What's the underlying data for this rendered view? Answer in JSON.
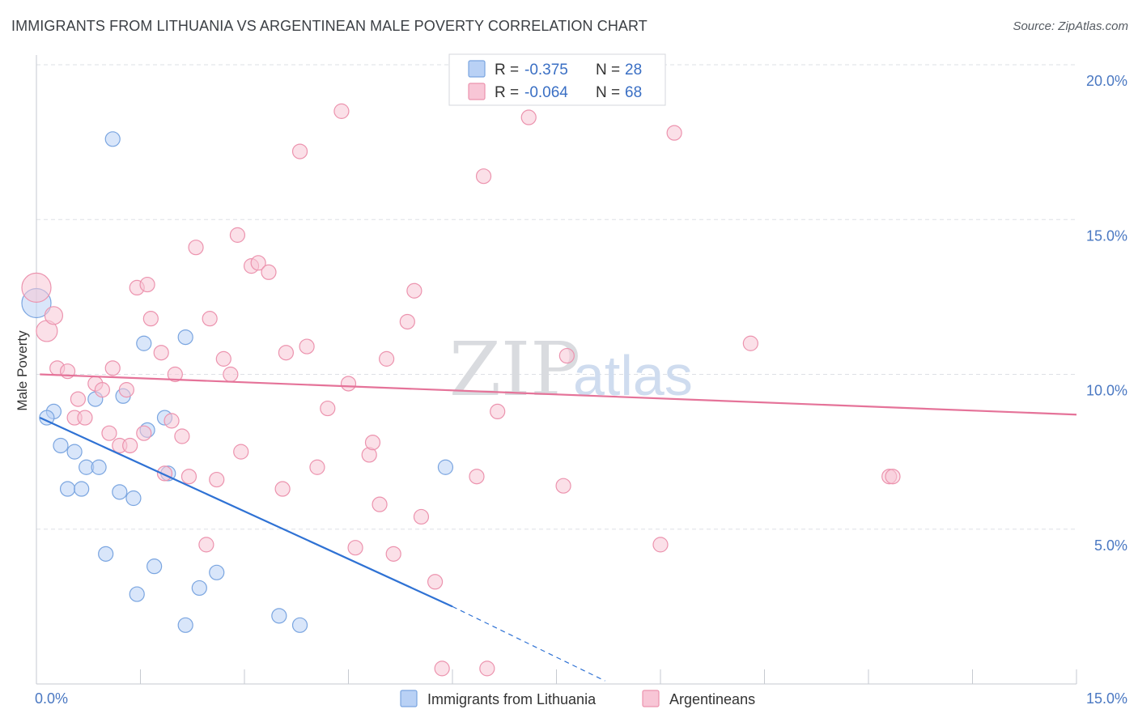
{
  "title": "IMMIGRANTS FROM LITHUANIA VS ARGENTINEAN MALE POVERTY CORRELATION CHART",
  "source": "Source: ZipAtlas.com",
  "watermark": {
    "zip": "ZIP",
    "atlas": "atlas"
  },
  "colors": {
    "blue_fill": "#b9d1f5",
    "blue_stroke": "#7aa5e0",
    "blue_line": "#2f72d4",
    "pink_fill": "#f8c6d6",
    "pink_stroke": "#ec93ae",
    "pink_line": "#e57399",
    "grid": "#dde0e5",
    "tick_label": "#4a78c2"
  },
  "legend": [
    {
      "r_label": "R =",
      "r_value": "-0.375",
      "n_label": "N =",
      "n_value": "28",
      "color": "blue"
    },
    {
      "r_label": "R =",
      "r_value": "-0.064",
      "n_label": "N =",
      "n_value": "68",
      "color": "pink"
    }
  ],
  "chart_data": {
    "type": "scatter",
    "ylabel": "Male Poverty",
    "xlim": [
      0,
      15
    ],
    "ylim": [
      0,
      20
    ],
    "x_ticks": [
      "0.0%",
      "15.0%"
    ],
    "y_ticks": [
      {
        "value": 5,
        "label": "5.0%"
      },
      {
        "value": 10,
        "label": "10.0%"
      },
      {
        "value": 15,
        "label": "15.0%"
      },
      {
        "value": 20,
        "label": "20.0%"
      }
    ],
    "grid": true,
    "legend_position": "top-center",
    "series": [
      {
        "name": "Immigrants from Lithuania",
        "color": "blue",
        "trend": {
          "x0": 0.05,
          "y0": 8.6,
          "x1": 6.0,
          "y1": 2.5,
          "dash_to_x": 8.2,
          "dash_to_y": 0.1
        },
        "points": [
          [
            0.0,
            12.3,
            18
          ],
          [
            1.1,
            17.6,
            9
          ],
          [
            0.25,
            8.8,
            9
          ],
          [
            0.15,
            8.6,
            9
          ],
          [
            1.55,
            11.0,
            9
          ],
          [
            2.15,
            11.2,
            9
          ],
          [
            0.85,
            9.2,
            9
          ],
          [
            1.25,
            9.3,
            9
          ],
          [
            1.6,
            8.2,
            9
          ],
          [
            1.85,
            8.6,
            9
          ],
          [
            0.35,
            7.7,
            9
          ],
          [
            0.55,
            7.5,
            9
          ],
          [
            0.72,
            7.0,
            9
          ],
          [
            0.9,
            7.0,
            9
          ],
          [
            1.9,
            6.8,
            9
          ],
          [
            0.45,
            6.3,
            9
          ],
          [
            0.65,
            6.3,
            9
          ],
          [
            1.2,
            6.2,
            9
          ],
          [
            1.4,
            6.0,
            9
          ],
          [
            5.9,
            7.0,
            9
          ],
          [
            1.0,
            4.2,
            9
          ],
          [
            1.7,
            3.8,
            9
          ],
          [
            2.6,
            3.6,
            9
          ],
          [
            2.35,
            3.1,
            9
          ],
          [
            1.45,
            2.9,
            9
          ],
          [
            2.15,
            1.9,
            9
          ],
          [
            3.5,
            2.2,
            9
          ],
          [
            3.8,
            1.9,
            9
          ]
        ]
      },
      {
        "name": "Argentineans",
        "color": "pink",
        "trend": {
          "x0": 0.05,
          "y0": 10.0,
          "x1": 15.0,
          "y1": 8.7
        },
        "points": [
          [
            0.0,
            12.8,
            18
          ],
          [
            0.15,
            11.4,
            13
          ],
          [
            0.25,
            11.9,
            11
          ],
          [
            0.3,
            10.2,
            9
          ],
          [
            0.45,
            10.1,
            9
          ],
          [
            0.6,
            9.2,
            9
          ],
          [
            0.55,
            8.6,
            9
          ],
          [
            0.7,
            8.6,
            9
          ],
          [
            0.85,
            9.7,
            9
          ],
          [
            0.95,
            9.5,
            9
          ],
          [
            1.05,
            8.1,
            9
          ],
          [
            1.1,
            10.2,
            9
          ],
          [
            1.2,
            7.7,
            9
          ],
          [
            1.3,
            9.5,
            9
          ],
          [
            1.35,
            7.7,
            9
          ],
          [
            1.45,
            12.8,
            9
          ],
          [
            1.55,
            8.1,
            9
          ],
          [
            1.6,
            12.9,
            9
          ],
          [
            1.65,
            11.8,
            9
          ],
          [
            1.8,
            10.7,
            9
          ],
          [
            1.85,
            6.8,
            9
          ],
          [
            1.95,
            8.5,
            9
          ],
          [
            2.0,
            10.0,
            9
          ],
          [
            2.1,
            8.0,
            9
          ],
          [
            2.2,
            6.7,
            9
          ],
          [
            2.3,
            14.1,
            9
          ],
          [
            2.45,
            4.5,
            9
          ],
          [
            2.5,
            11.8,
            9
          ],
          [
            2.6,
            6.6,
            9
          ],
          [
            2.7,
            10.5,
            9
          ],
          [
            2.8,
            10.0,
            9
          ],
          [
            2.9,
            14.5,
            9
          ],
          [
            2.95,
            7.5,
            9
          ],
          [
            3.1,
            13.5,
            9
          ],
          [
            3.2,
            13.6,
            9
          ],
          [
            3.35,
            13.3,
            9
          ],
          [
            3.55,
            6.3,
            9
          ],
          [
            3.6,
            10.7,
            9
          ],
          [
            3.8,
            17.2,
            9
          ],
          [
            3.9,
            10.9,
            9
          ],
          [
            4.05,
            7.0,
            9
          ],
          [
            4.2,
            8.9,
            9
          ],
          [
            4.4,
            18.5,
            9
          ],
          [
            4.5,
            9.7,
            9
          ],
          [
            4.6,
            4.4,
            9
          ],
          [
            4.8,
            7.4,
            9
          ],
          [
            4.85,
            7.8,
            9
          ],
          [
            4.95,
            5.8,
            9
          ],
          [
            5.05,
            10.5,
            9
          ],
          [
            5.15,
            4.2,
            9
          ],
          [
            5.35,
            11.7,
            9
          ],
          [
            5.45,
            12.7,
            9
          ],
          [
            5.55,
            5.4,
            9
          ],
          [
            5.75,
            3.3,
            9
          ],
          [
            5.85,
            0.5,
            9
          ],
          [
            6.35,
            6.7,
            9
          ],
          [
            6.45,
            16.4,
            9
          ],
          [
            6.5,
            0.5,
            9
          ],
          [
            6.65,
            8.8,
            9
          ],
          [
            6.75,
            20.0,
            9
          ],
          [
            7.1,
            18.3,
            9
          ],
          [
            7.6,
            6.4,
            9
          ],
          [
            7.65,
            10.6,
            9
          ],
          [
            9.0,
            4.5,
            9
          ],
          [
            9.2,
            17.8,
            9
          ],
          [
            10.3,
            11.0,
            9
          ],
          [
            12.3,
            6.7,
            9
          ],
          [
            12.35,
            6.7,
            9
          ]
        ]
      }
    ]
  }
}
